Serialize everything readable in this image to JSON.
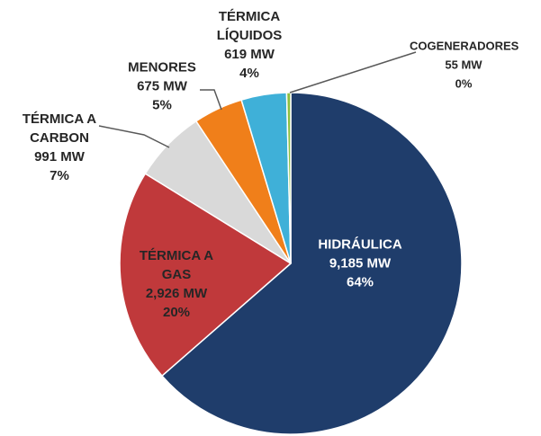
{
  "chart_data": {
    "type": "pie",
    "categories": [
      "HIDRÁULICA",
      "TÉRMICA A GAS",
      "TÉRMICA A CARBON",
      "MENORES",
      "TÉRMICA LÍQUIDOS",
      "COGENERADORES"
    ],
    "values": [
      9185,
      2926,
      991,
      675,
      619,
      55
    ],
    "value_labels": [
      "9,185 MW",
      "2,926 MW",
      "991 MW",
      "675 MW",
      "619 MW",
      "55 MW"
    ],
    "percent_labels": [
      "64%",
      "20%",
      "7%",
      "5%",
      "4%",
      "0%"
    ],
    "colors": [
      "#1f3d6b",
      "#c0393b",
      "#d9d9d9",
      "#f07f1a",
      "#3fb0d8",
      "#8cbf3f"
    ]
  }
}
